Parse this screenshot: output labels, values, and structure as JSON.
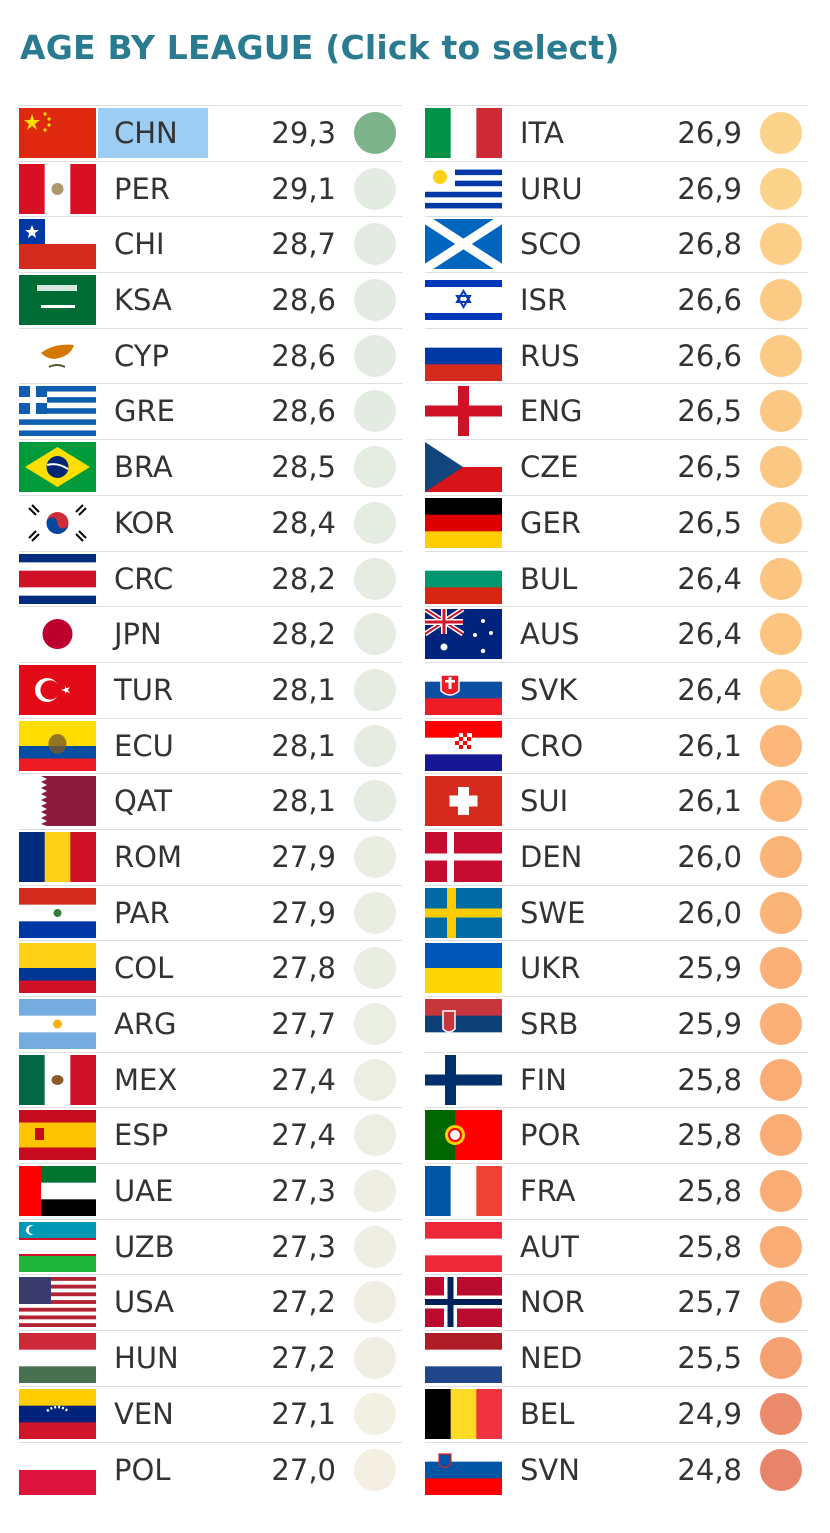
{
  "title": "AGE BY LEAGUE (Click to select)",
  "selected": "CHN",
  "left_column": [
    {
      "code": "CHN",
      "value": "29,3",
      "flag": "chn-flag",
      "color": "#7cb38a"
    },
    {
      "code": "PER",
      "value": "29,1",
      "flag": "per-flag",
      "color": "#e3ebe2"
    },
    {
      "code": "CHI",
      "value": "28,7",
      "flag": "chi-flag",
      "color": "#e3ebe2"
    },
    {
      "code": "KSA",
      "value": "28,6",
      "flag": "ksa-flag",
      "color": "#e4ebe2"
    },
    {
      "code": "CYP",
      "value": "28,6",
      "flag": "cyp-flag",
      "color": "#e4ebe2"
    },
    {
      "code": "GRE",
      "value": "28,6",
      "flag": "gre-flag",
      "color": "#e4ebe2"
    },
    {
      "code": "BRA",
      "value": "28,5",
      "flag": "bra-flag",
      "color": "#e5ece2"
    },
    {
      "code": "KOR",
      "value": "28,4",
      "flag": "kor-flag",
      "color": "#e5ece2"
    },
    {
      "code": "CRC",
      "value": "28,2",
      "flag": "crc-flag",
      "color": "#e6ece2"
    },
    {
      "code": "JPN",
      "value": "28,2",
      "flag": "jpn-flag",
      "color": "#e6ece2"
    },
    {
      "code": "TUR",
      "value": "28,1",
      "flag": "tur-flag",
      "color": "#e7ece2"
    },
    {
      "code": "ECU",
      "value": "28,1",
      "flag": "ecu-flag",
      "color": "#e7ece2"
    },
    {
      "code": "QAT",
      "value": "28,1",
      "flag": "qat-flag",
      "color": "#e7ece2"
    },
    {
      "code": "ROM",
      "value": "27,9",
      "flag": "rom-flag",
      "color": "#e9ede2"
    },
    {
      "code": "PAR",
      "value": "27,9",
      "flag": "par-flag",
      "color": "#e9ede2"
    },
    {
      "code": "COL",
      "value": "27,8",
      "flag": "col-flag",
      "color": "#eaede2"
    },
    {
      "code": "ARG",
      "value": "27,7",
      "flag": "arg-flag",
      "color": "#ebeee2"
    },
    {
      "code": "MEX",
      "value": "27,4",
      "flag": "mex-flag",
      "color": "#edeee2"
    },
    {
      "code": "ESP",
      "value": "27,4",
      "flag": "esp-flag",
      "color": "#edeee2"
    },
    {
      "code": "UAE",
      "value": "27,3",
      "flag": "uae-flag",
      "color": "#eeeee2"
    },
    {
      "code": "UZB",
      "value": "27,3",
      "flag": "uzb-flag",
      "color": "#eeeee2"
    },
    {
      "code": "USA",
      "value": "27,2",
      "flag": "usa-flag",
      "color": "#f0eee2"
    },
    {
      "code": "HUN",
      "value": "27,2",
      "flag": "hun-flag",
      "color": "#f0eee2"
    },
    {
      "code": "VEN",
      "value": "27,1",
      "flag": "ven-flag",
      "color": "#f2efe3"
    },
    {
      "code": "POL",
      "value": "27,0",
      "flag": "pol-flag",
      "color": "#f4efe3"
    }
  ],
  "right_column": [
    {
      "code": "ITA",
      "value": "26,9",
      "flag": "ita-flag",
      "color": "#fbd38a"
    },
    {
      "code": "URU",
      "value": "26,9",
      "flag": "uru-flag",
      "color": "#fbd38a"
    },
    {
      "code": "SCO",
      "value": "26,8",
      "flag": "sco-flag",
      "color": "#fbcf88"
    },
    {
      "code": "ISR",
      "value": "26,6",
      "flag": "isr-flag",
      "color": "#fbcb85"
    },
    {
      "code": "RUS",
      "value": "26,6",
      "flag": "rus-flag",
      "color": "#fbcb85"
    },
    {
      "code": "ENG",
      "value": "26,5",
      "flag": "eng-flag",
      "color": "#fbc883"
    },
    {
      "code": "CZE",
      "value": "26,5",
      "flag": "cze-flag",
      "color": "#fbc883"
    },
    {
      "code": "GER",
      "value": "26,5",
      "flag": "ger-flag",
      "color": "#fbc883"
    },
    {
      "code": "BUL",
      "value": "26,4",
      "flag": "bul-flag",
      "color": "#fbc480"
    },
    {
      "code": "AUS",
      "value": "26,4",
      "flag": "aus-flag",
      "color": "#fbc480"
    },
    {
      "code": "SVK",
      "value": "26,4",
      "flag": "svk-flag",
      "color": "#fbc480"
    },
    {
      "code": "CRO",
      "value": "26,1",
      "flag": "cro-flag",
      "color": "#fbb87a"
    },
    {
      "code": "SUI",
      "value": "26,1",
      "flag": "sui-flag",
      "color": "#fbb87a"
    },
    {
      "code": "DEN",
      "value": "26,0",
      "flag": "den-flag",
      "color": "#fbb478"
    },
    {
      "code": "SWE",
      "value": "26,0",
      "flag": "swe-flag",
      "color": "#fbb478"
    },
    {
      "code": "UKR",
      "value": "25,9",
      "flag": "ukr-flag",
      "color": "#fab076"
    },
    {
      "code": "SRB",
      "value": "25,9",
      "flag": "srb-flag",
      "color": "#fab076"
    },
    {
      "code": "FIN",
      "value": "25,8",
      "flag": "fin-flag",
      "color": "#f9ad75"
    },
    {
      "code": "POR",
      "value": "25,8",
      "flag": "por-flag",
      "color": "#f9ad75"
    },
    {
      "code": "FRA",
      "value": "25,8",
      "flag": "fra-flag",
      "color": "#f9ad75"
    },
    {
      "code": "AUT",
      "value": "25,8",
      "flag": "aut-flag",
      "color": "#f9ad75"
    },
    {
      "code": "NOR",
      "value": "25,7",
      "flag": "nor-flag",
      "color": "#f8aa74"
    },
    {
      "code": "NED",
      "value": "25,5",
      "flag": "ned-flag",
      "color": "#f4a070"
    },
    {
      "code": "BEL",
      "value": "24,9",
      "flag": "bel-flag",
      "color": "#ec8a6c"
    },
    {
      "code": "SVN",
      "value": "24,8",
      "flag": "svn-flag",
      "color": "#e8846a"
    }
  ]
}
